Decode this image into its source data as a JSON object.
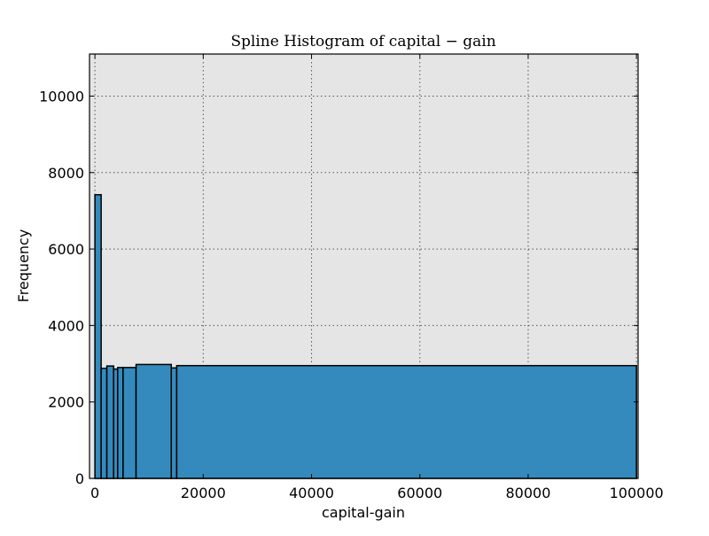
{
  "chart_data": {
    "type": "bar",
    "title": "Spline Histogram of capital − gain",
    "xlabel": "capital-gain",
    "ylabel": "Frequency",
    "xlim": [
      -1000,
      100300
    ],
    "ylim": [
      0,
      11100
    ],
    "xticks": [
      0,
      20000,
      40000,
      60000,
      80000,
      100000
    ],
    "yticks": [
      0,
      2000,
      4000,
      6000,
      8000,
      10000
    ],
    "grid": true,
    "bar_color": "#348abd",
    "plot_background": "#e5e5e5",
    "bins": [
      {
        "start": 0,
        "end": 1150,
        "count": 7420
      },
      {
        "start": 1150,
        "end": 2200,
        "count": 2880
      },
      {
        "start": 2200,
        "end": 3450,
        "count": 2940
      },
      {
        "start": 3450,
        "end": 4200,
        "count": 2860
      },
      {
        "start": 4200,
        "end": 5200,
        "count": 2900
      },
      {
        "start": 5200,
        "end": 7600,
        "count": 2900
      },
      {
        "start": 7600,
        "end": 14100,
        "count": 2980
      },
      {
        "start": 14100,
        "end": 15100,
        "count": 2890
      },
      {
        "start": 15100,
        "end": 99999,
        "count": 2950
      }
    ]
  }
}
